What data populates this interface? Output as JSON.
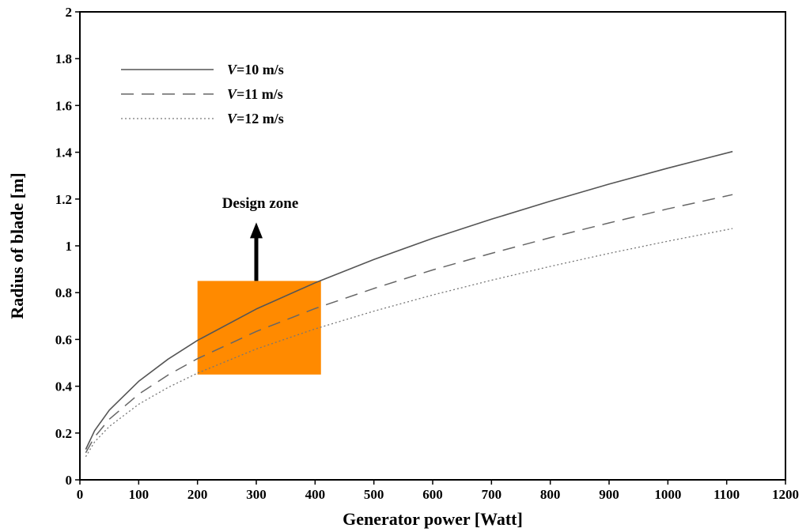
{
  "chart_data": {
    "type": "line",
    "title": "",
    "xlabel": "Generator power [Watt]",
    "ylabel": "Radius of blade [m]",
    "xlim": [
      0,
      1200
    ],
    "ylim": [
      0,
      2
    ],
    "xticks": [
      0,
      100,
      200,
      300,
      400,
      500,
      600,
      700,
      800,
      900,
      1000,
      1100,
      1200
    ],
    "xtick_labels": [
      "0",
      "100",
      "200",
      "300",
      "400",
      "500",
      "600",
      "700",
      "800",
      "900",
      "1000",
      "1100",
      "1200"
    ],
    "yticks": [
      0,
      0.2,
      0.4,
      0.6,
      0.8,
      1,
      1.2,
      1.4,
      1.6,
      1.8,
      2
    ],
    "ytick_labels": [
      "0",
      "0.2",
      "0.4",
      "0.6",
      "0.8",
      "1",
      "1.2",
      "1.4",
      "1.6",
      "1.8",
      "2"
    ],
    "grid": false,
    "legend_position": "top-left",
    "x": [
      10,
      25,
      50,
      100,
      150,
      200,
      300,
      400,
      500,
      600,
      700,
      800,
      900,
      1000,
      1110
    ],
    "series": [
      {
        "name": "V=10 m/s",
        "legend_italic": "V",
        "legend_rest": "=10 m/s",
        "style": "solid",
        "values": [
          0.13,
          0.21,
          0.298,
          0.421,
          0.516,
          0.596,
          0.73,
          0.842,
          0.942,
          1.032,
          1.114,
          1.191,
          1.264,
          1.332,
          1.403
        ]
      },
      {
        "name": "V=11 m/s",
        "legend_italic": "V",
        "legend_rest": "=11 m/s",
        "style": "dashed",
        "values": [
          0.116,
          0.183,
          0.259,
          0.366,
          0.448,
          0.518,
          0.634,
          0.732,
          0.818,
          0.897,
          0.968,
          1.035,
          1.098,
          1.158,
          1.219
        ]
      },
      {
        "name": "V=12 m/s",
        "legend_italic": "V",
        "legend_rest": "=12 m/s",
        "style": "dotted",
        "values": [
          0.099,
          0.162,
          0.228,
          0.323,
          0.395,
          0.456,
          0.559,
          0.645,
          0.721,
          0.79,
          0.853,
          0.912,
          0.968,
          1.02,
          1.074
        ]
      }
    ],
    "annotations": [
      {
        "text": "Design zone",
        "type": "region",
        "x_range": [
          200,
          410
        ],
        "y_range": [
          0.45,
          0.85
        ],
        "color": "#ff8a00",
        "arrow_x": 300,
        "arrow_from_y": 0.85,
        "arrow_to_y": 1.1
      }
    ]
  }
}
